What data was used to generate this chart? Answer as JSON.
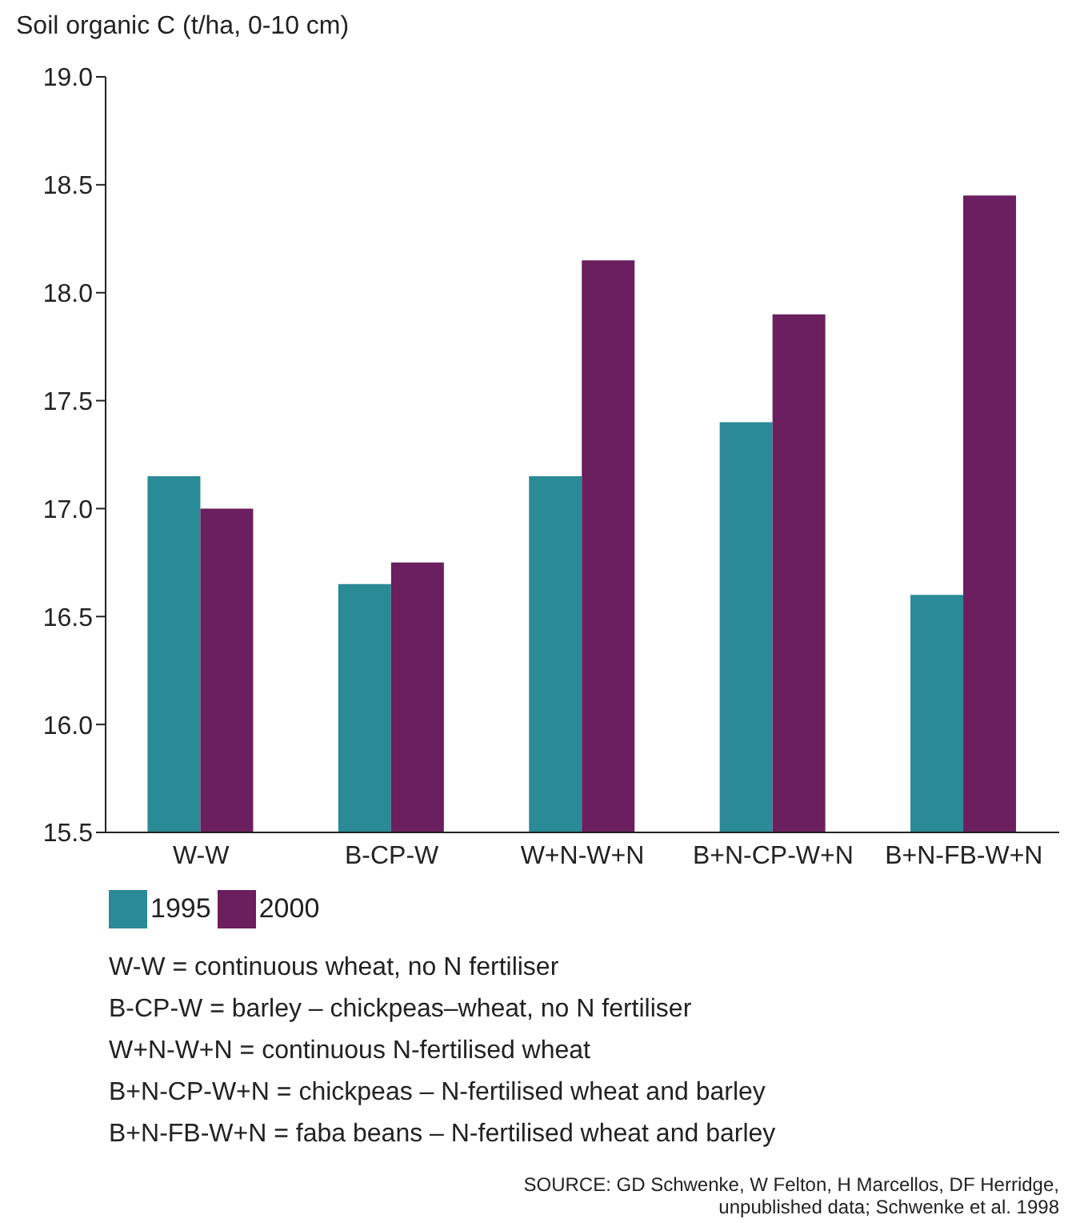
{
  "chart_data": {
    "type": "bar",
    "ylabel": "Soil organic C (t/ha, 0-10 cm)",
    "categories": [
      "W-W",
      "B-CP-W",
      "W+N-W+N",
      "B+N-CP-W+N",
      "B+N-FB-W+N"
    ],
    "series": [
      {
        "name": "1995",
        "color": "#2a8a96",
        "values": [
          17.15,
          16.65,
          17.15,
          17.4,
          16.6
        ]
      },
      {
        "name": "2000",
        "color": "#6b1f5e",
        "values": [
          17.0,
          16.75,
          18.15,
          17.9,
          18.45
        ]
      }
    ],
    "ylim": [
      15.5,
      19.0
    ],
    "yticks": [
      {
        "value": 15.5,
        "label": "15.5"
      },
      {
        "value": 16,
        "label": "16.0"
      },
      {
        "value": 16.5,
        "label": "16.5"
      },
      {
        "value": 17,
        "label": "17.0"
      },
      {
        "value": 17.5,
        "label": "17.5"
      },
      {
        "value": 18,
        "label": "18.0"
      },
      {
        "value": 18.5,
        "label": "18.5"
      },
      {
        "value": 19,
        "label": "19.0"
      }
    ],
    "grid": false,
    "legend": "bottom left",
    "annotations": [
      "W-W = continuous wheat, no N fertiliser",
      "B-CP-W = barley – chickpeas–wheat, no N fertiliser",
      "W+N-W+N = continuous N-fertilised wheat",
      "B+N-CP-W+N = chickpeas – N-fertilised wheat and barley",
      "B+N-FB-W+N = faba beans – N-fertilised wheat and barley",
      "SOURCE: GD Schwenke, W Felton, H Marcellos, DF Herridge, unpublished data; Schwenke et al. 1998"
    ]
  }
}
